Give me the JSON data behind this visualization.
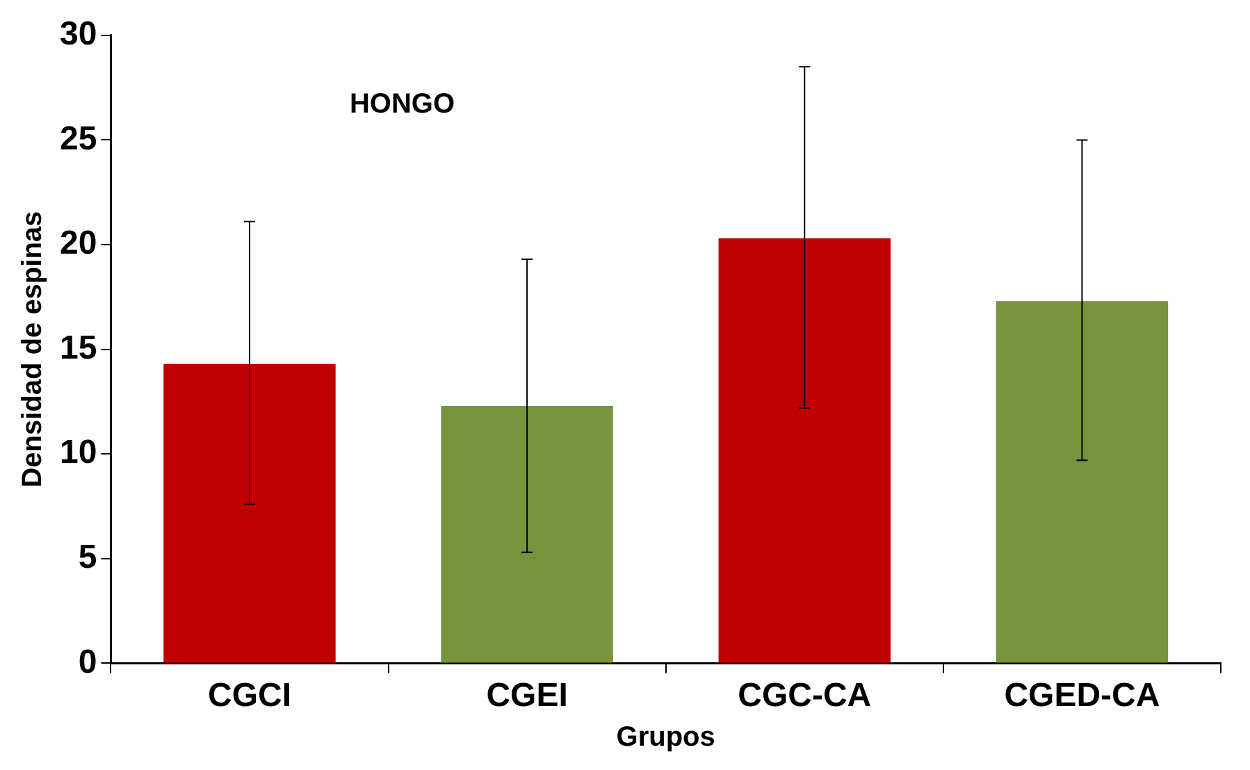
{
  "chart_data": {
    "type": "bar",
    "title": "HONGO",
    "xlabel": "Grupos",
    "ylabel": "Densidad de espinas",
    "categories": [
      "CGCI",
      "CGEI",
      "CGC-CA",
      "CGED-CA"
    ],
    "values": [
      14.3,
      12.3,
      20.3,
      17.3
    ],
    "colors": [
      "#c00000",
      "#77933c",
      "#c00000",
      "#77933c"
    ],
    "errors": [
      [
        7.6,
        21.1
      ],
      [
        5.3,
        19.3
      ],
      [
        12.2,
        28.5
      ],
      [
        9.7,
        25.0
      ]
    ],
    "ylim": [
      0,
      30
    ],
    "yticks": [
      0,
      5,
      10,
      15,
      20,
      25,
      30
    ],
    "grid": false,
    "legend": false
  }
}
